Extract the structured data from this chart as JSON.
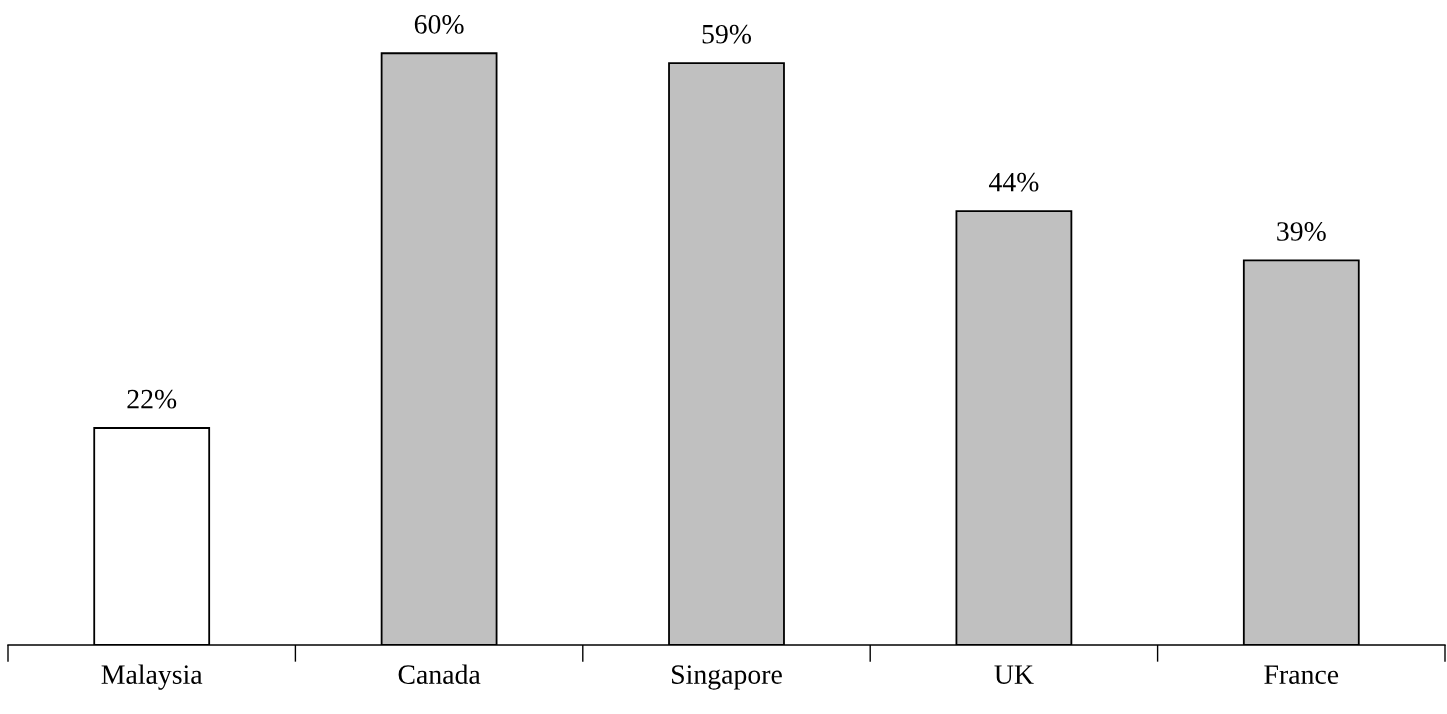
{
  "chart_data": {
    "type": "bar",
    "categories": [
      "Malaysia",
      "Canada",
      "Singapore",
      "UK",
      "France"
    ],
    "values": [
      22,
      60,
      59,
      44,
      39
    ],
    "colors": [
      "#ffffff",
      "#c0c0c0",
      "#c0c0c0",
      "#c0c0c0",
      "#c0c0c0"
    ],
    "value_labels": [
      "22%",
      "60%",
      "59%",
      "44%",
      "39%"
    ],
    "grid": false,
    "legend": false
  }
}
